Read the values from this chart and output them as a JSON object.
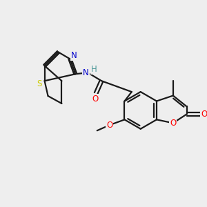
{
  "bg_color": "#eeeeee",
  "bond_color": "#1a1a1a",
  "bond_width": 1.6,
  "atom_colors": {
    "N": "#0000cc",
    "S": "#cccc00",
    "O": "#ff0000",
    "H": "#4d9999",
    "C": "#1a1a1a"
  },
  "font_size_atom": 8.5,
  "font_size_label": 7.5
}
